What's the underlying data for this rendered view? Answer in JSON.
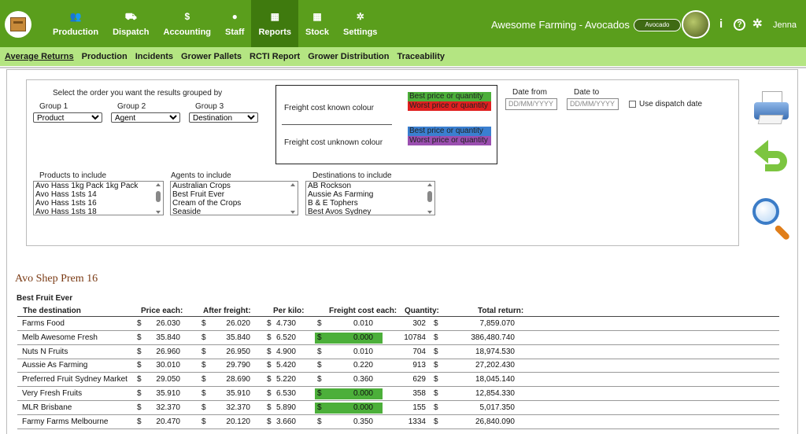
{
  "topbar": {
    "nav": [
      {
        "label": "Production",
        "icon": "users-icon",
        "glyph": "👥"
      },
      {
        "label": "Dispatch",
        "icon": "truck-icon",
        "glyph": "⛟"
      },
      {
        "label": "Accounting",
        "icon": "dollar-icon",
        "glyph": "$"
      },
      {
        "label": "Staff",
        "icon": "user-icon",
        "glyph": "●"
      },
      {
        "label": "Reports",
        "icon": "table-icon",
        "glyph": "▦"
      },
      {
        "label": "Stock",
        "icon": "grid-icon",
        "glyph": "▦"
      },
      {
        "label": "Settings",
        "icon": "gear-icon",
        "glyph": "✲"
      }
    ],
    "active_nav": "Reports",
    "app_title": "Awesome Farming - Avocados",
    "crop_label": "Avocado",
    "user": "Jenna",
    "info_glyph": "i",
    "help_glyph": "?",
    "settings_glyph": "✲"
  },
  "subnav": [
    "Average Returns",
    "Production",
    "Incidents",
    "Grower Pallets",
    "RCTI Report",
    "Grower Distribution",
    "Traceability"
  ],
  "filters": {
    "group_prompt": "Select the order you want the results grouped by",
    "group1_label": "Group 1",
    "group1_value": "Product",
    "group2_label": "Group 2",
    "group2_value": "Agent",
    "group3_label": "Group 3",
    "group3_value": "Destination",
    "freight_known": "Freight cost known colour",
    "freight_unknown": "Freight cost unknown colour",
    "best": "Best price or quantity",
    "worst": "Worst price or quantity",
    "date_from_label": "Date from",
    "date_to_label": "Date to",
    "date_placeholder": "DD/MM/YYYY",
    "use_dispatch": "Use dispatch date",
    "products_label": "Products to include",
    "products": [
      "Avo Hass 1kg Pack 1kg Pack",
      "Avo Hass 1sts 14",
      "Avo Hass 1sts 16",
      "Avo Hass 1sts 18"
    ],
    "agents_label": "Agents to include",
    "agents": [
      "Australian Crops",
      "Best Fruit Ever",
      "Cream of the Crops",
      "Seaside"
    ],
    "destinations_label": "Destinations to include",
    "destinations": [
      "AB Rockson",
      "Aussie As Farming",
      "B & E Tophers",
      "Best Avos Sydney"
    ]
  },
  "colors": {
    "best_known": "#4caf3a",
    "worst_known": "#e02020",
    "best_unknown": "#3a7fd0",
    "worst_unknown": "#9b4fb0"
  },
  "results": {
    "product": "Avo Shep Prem 16",
    "agent": "Best Fruit Ever",
    "headers": {
      "destination": "The destination",
      "price": "Price each:",
      "after_freight": "After freight:",
      "per_kilo": "Per kilo:",
      "freight_each": "Freight cost each:",
      "quantity": "Quantity:",
      "total": "Total return:"
    },
    "currency": "$",
    "rows": [
      {
        "destination": "Farms Food",
        "price": "26.030",
        "after": "26.020",
        "kilo": "4.730",
        "freight": "0.010",
        "qty": "302",
        "total": "7,859.070",
        "freight_hl": ""
      },
      {
        "destination": "Melb Awesome Fresh",
        "price": "35.840",
        "after": "35.840",
        "kilo": "6.520",
        "freight": "0.000",
        "qty": "10784",
        "total": "386,480.740",
        "freight_hl": "best"
      },
      {
        "destination": "Nuts N Fruits",
        "price": "26.960",
        "after": "26.950",
        "kilo": "4.900",
        "freight": "0.010",
        "qty": "704",
        "total": "18,974.530",
        "freight_hl": ""
      },
      {
        "destination": "Aussie As Farming",
        "price": "30.010",
        "after": "29.790",
        "kilo": "5.420",
        "freight": "0.220",
        "qty": "913",
        "total": "27,202.430",
        "freight_hl": ""
      },
      {
        "destination": "Preferred Fruit Sydney Market",
        "price": "29.050",
        "after": "28.690",
        "kilo": "5.220",
        "freight": "0.360",
        "qty": "629",
        "total": "18,045.140",
        "freight_hl": ""
      },
      {
        "destination": "Very Fresh Fruits",
        "price": "35.910",
        "after": "35.910",
        "kilo": "6.530",
        "freight": "0.000",
        "qty": "358",
        "total": "12,854.330",
        "freight_hl": "best"
      },
      {
        "destination": "MLR Brisbane",
        "price": "32.370",
        "after": "32.370",
        "kilo": "5.890",
        "freight": "0.000",
        "qty": "155",
        "total": "5,017.350",
        "freight_hl": "best"
      },
      {
        "destination": "Farmy Farms Melbourne",
        "price": "20.470",
        "after": "20.120",
        "kilo": "3.660",
        "freight": "0.350",
        "qty": "1334",
        "total": "26,840.090",
        "freight_hl": ""
      }
    ]
  }
}
